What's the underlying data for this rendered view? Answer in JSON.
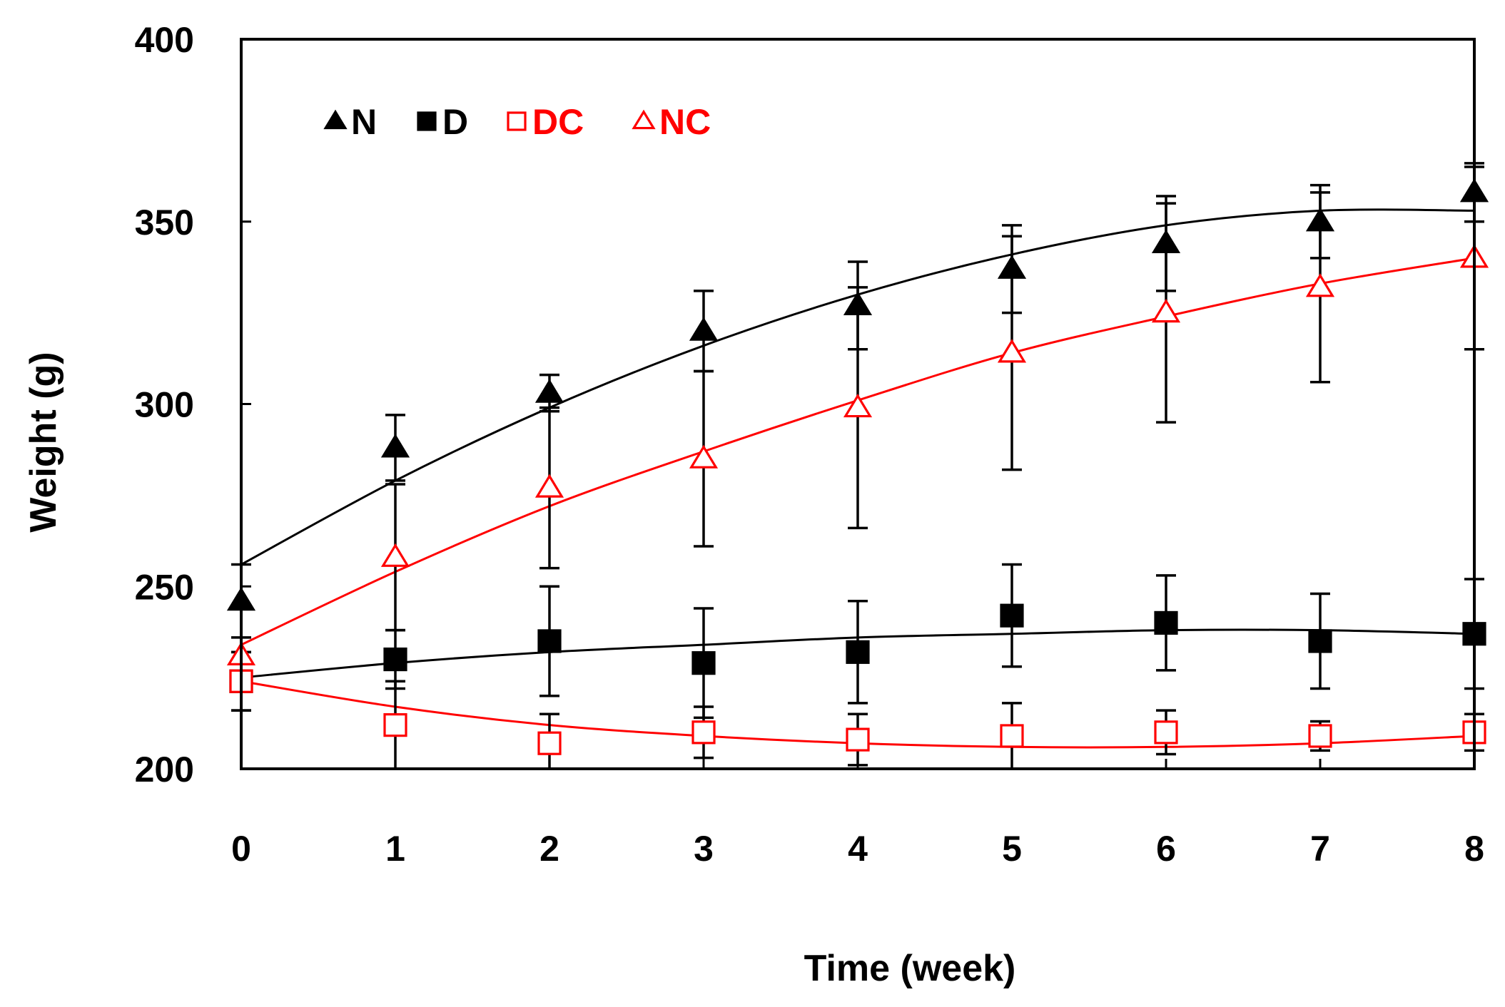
{
  "chart_data": {
    "type": "line",
    "xlabel": "Time (week)",
    "ylabel": "Weight (g)",
    "xlim": [
      0,
      8
    ],
    "ylim": [
      200,
      400
    ],
    "x_ticks": [
      0,
      1,
      2,
      3,
      4,
      5,
      6,
      7,
      8
    ],
    "y_ticks": [
      200,
      250,
      300,
      350,
      400
    ],
    "grid": false,
    "legend_position": "top-left",
    "x": [
      0,
      1,
      2,
      3,
      4,
      5,
      6,
      7,
      8
    ],
    "series": [
      {
        "name": "N",
        "marker": "filled-triangle",
        "color": "#000000",
        "values": [
          246,
          288,
          303,
          320,
          327,
          337,
          344,
          350,
          358
        ],
        "error": [
          10,
          9,
          5,
          11,
          12,
          12,
          13,
          10,
          8
        ],
        "fit": [
          256,
          279,
          299,
          316,
          330,
          341,
          349,
          353,
          353
        ]
      },
      {
        "name": "D",
        "marker": "filled-square",
        "color": "#000000",
        "values": [
          224,
          230,
          235,
          229,
          232,
          242,
          240,
          235,
          237
        ],
        "error": [
          8,
          8,
          15,
          15,
          14,
          14,
          13,
          13,
          15
        ],
        "fit": [
          225,
          229,
          232,
          234,
          236,
          237,
          238,
          238,
          237
        ]
      },
      {
        "name": "DC",
        "marker": "open-square",
        "color": "#ff0000",
        "values": [
          224,
          212,
          207,
          210,
          208,
          209,
          210,
          209,
          210
        ],
        "error": [
          8,
          12,
          8,
          7,
          7,
          9,
          6,
          4,
          5
        ],
        "fit": [
          224,
          217,
          212,
          209,
          207,
          206,
          206,
          207,
          209
        ]
      },
      {
        "name": "NC",
        "marker": "open-triangle",
        "color": "#ff0000",
        "values": [
          231,
          258,
          277,
          285,
          299,
          314,
          325,
          332,
          340
        ],
        "error": [
          0,
          20,
          22,
          24,
          33,
          32,
          30,
          26,
          25
        ],
        "fit": [
          234,
          254,
          272,
          287,
          301,
          314,
          324,
          333,
          340
        ]
      }
    ]
  }
}
